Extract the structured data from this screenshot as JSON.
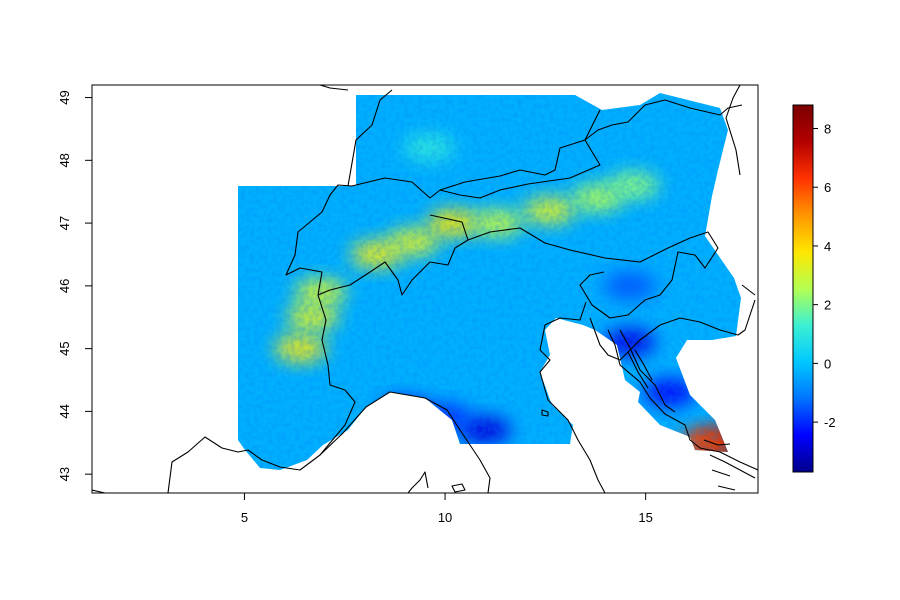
{
  "chart_data": {
    "type": "heatmap",
    "title": "",
    "xlabel": "",
    "ylabel": "",
    "xlim": [
      1.2,
      17.8
    ],
    "ylim": [
      42.7,
      49.2
    ],
    "x_ticks": [
      5,
      10,
      15
    ],
    "y_ticks": [
      43,
      44,
      45,
      46,
      47,
      48,
      49
    ],
    "grid": false,
    "legend": "right",
    "colorbar": {
      "range": [
        -3.7,
        8.8
      ],
      "ticks": [
        -2,
        0,
        2,
        4,
        6,
        8
      ],
      "colors": [
        "#00008b",
        "#0000ff",
        "#0073ff",
        "#00c8ff",
        "#3cf0d2",
        "#b4ff50",
        "#ffe600",
        "#ff9600",
        "#ff3200",
        "#b40000",
        "#7a0000"
      ]
    },
    "anomalies": [
      {
        "x": 6.4,
        "y": 45.0,
        "value": 3.6
      },
      {
        "x": 6.7,
        "y": 45.5,
        "value": 3.2
      },
      {
        "x": 6.9,
        "y": 45.9,
        "value": 3.0
      },
      {
        "x": 8.3,
        "y": 46.5,
        "value": 3.5
      },
      {
        "x": 9.2,
        "y": 46.7,
        "value": 3.2
      },
      {
        "x": 10.2,
        "y": 47.0,
        "value": 3.7
      },
      {
        "x": 11.3,
        "y": 47.0,
        "value": 2.8
      },
      {
        "x": 12.6,
        "y": 47.2,
        "value": 3.2
      },
      {
        "x": 13.8,
        "y": 47.4,
        "value": 2.5
      },
      {
        "x": 14.7,
        "y": 47.6,
        "value": 2.1
      },
      {
        "x": 9.6,
        "y": 48.2,
        "value": 1.0
      },
      {
        "x": 9.0,
        "y": 44.0,
        "value": -2.6
      },
      {
        "x": 11.0,
        "y": 43.7,
        "value": -2.8
      },
      {
        "x": 10.0,
        "y": 43.9,
        "value": -2.0
      },
      {
        "x": 14.6,
        "y": 45.1,
        "value": -2.7
      },
      {
        "x": 14.6,
        "y": 46.0,
        "value": -1.5
      },
      {
        "x": 15.6,
        "y": 44.3,
        "value": -2.5
      },
      {
        "x": 16.8,
        "y": 43.5,
        "value": 8.5
      },
      {
        "x": 16.5,
        "y": 43.5,
        "value": 6.0
      }
    ]
  }
}
